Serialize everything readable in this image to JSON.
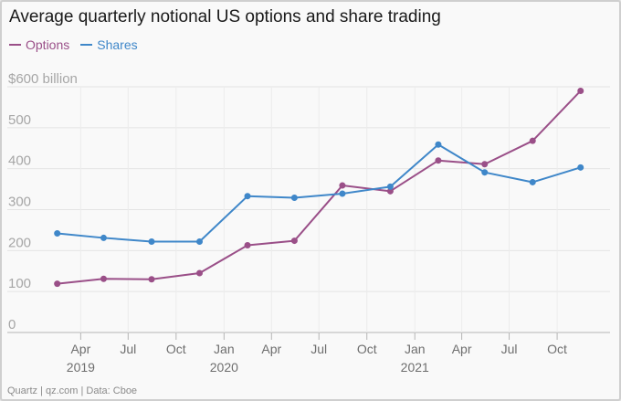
{
  "chart_data": {
    "type": "line",
    "title": "Average quarterly notional US options and share trading",
    "source": "Quartz | qz.com | Data: Cboe",
    "ylim": [
      0,
      600
    ],
    "y_ticks": [
      {
        "value": 0,
        "label": "0"
      },
      {
        "value": 100,
        "label": "100"
      },
      {
        "value": 200,
        "label": "200"
      },
      {
        "value": 300,
        "label": "300"
      },
      {
        "value": 400,
        "label": "400"
      },
      {
        "value": 500,
        "label": "500"
      },
      {
        "value": 600,
        "label": "$600 billion"
      }
    ],
    "x_range": [
      "2019-01-01",
      "2021-12-31"
    ],
    "x_ticks": [
      {
        "date": "2019-04-01",
        "label": "Apr",
        "year": "2019"
      },
      {
        "date": "2019-07-01",
        "label": "Jul",
        "year": ""
      },
      {
        "date": "2019-10-01",
        "label": "Oct",
        "year": ""
      },
      {
        "date": "2020-01-01",
        "label": "Jan",
        "year": "2020"
      },
      {
        "date": "2020-04-01",
        "label": "Apr",
        "year": ""
      },
      {
        "date": "2020-07-01",
        "label": "Jul",
        "year": ""
      },
      {
        "date": "2020-10-01",
        "label": "Oct",
        "year": ""
      },
      {
        "date": "2021-01-01",
        "label": "Jan",
        "year": "2021"
      },
      {
        "date": "2021-04-01",
        "label": "Apr",
        "year": ""
      },
      {
        "date": "2021-07-01",
        "label": "Jul",
        "year": ""
      },
      {
        "date": "2021-10-01",
        "label": "Oct",
        "year": ""
      }
    ],
    "x": [
      "2019-02-15",
      "2019-05-15",
      "2019-08-15",
      "2019-11-15",
      "2020-02-15",
      "2020-05-15",
      "2020-08-15",
      "2020-11-15",
      "2021-02-15",
      "2021-05-15",
      "2021-08-15",
      "2021-11-15"
    ],
    "series": [
      {
        "name": "Options",
        "color": "#9a4f88",
        "values": [
          119,
          131,
          130,
          145,
          213,
          224,
          359,
          345,
          420,
          411,
          468,
          590
        ]
      },
      {
        "name": "Shares",
        "color": "#3f87c9",
        "values": [
          242,
          231,
          222,
          222,
          333,
          329,
          339,
          356,
          459,
          391,
          367,
          403
        ]
      }
    ],
    "grid": true,
    "legend": "top-left"
  }
}
